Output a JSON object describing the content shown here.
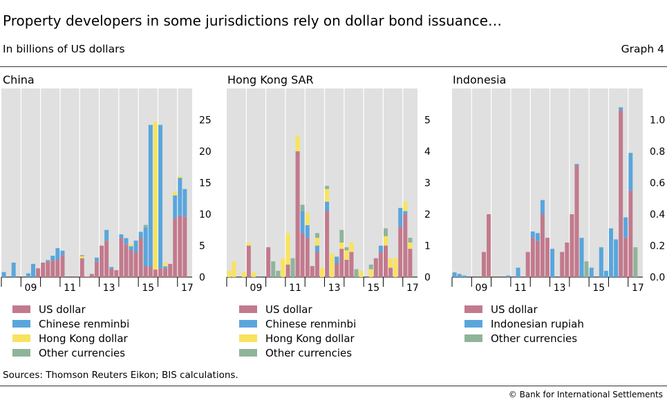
{
  "header": {
    "title": "Property developers in some jurisdictions rely on dollar bond issuance…",
    "subtitle": "In billions of US dollars",
    "graph_label": "Graph 4"
  },
  "footer": {
    "sources": "Sources: Thomson Reuters Eikon; BIS calculations.",
    "copyright": "© Bank for International Settlements"
  },
  "colors": {
    "US dollar": "#c27a8d",
    "Chinese renminbi": "#5aa6dc",
    "Hong Kong dollar": "#f8e35e",
    "Indonesian rupiah": "#5aa6dc",
    "Other currencies": "#8fb49a",
    "plot_background": "#e0e0e0"
  },
  "chart_data": [
    {
      "type": "bar",
      "stacked": true,
      "title": "China",
      "x_tick_labels": [
        "09",
        "11",
        "13",
        "15",
        "17"
      ],
      "x_tick_positions": [
        2009,
        2011,
        2013,
        2015,
        2017
      ],
      "ylim": [
        0,
        30
      ],
      "y_ticks": [
        0,
        5,
        10,
        15,
        20,
        25
      ],
      "y_axis_side": "right",
      "grid": true,
      "legend_placement": "bottom",
      "series": [
        {
          "name": "US dollar",
          "x": [
            2008,
            2008.5,
            2009.25,
            2009.5,
            2009.75,
            2010,
            2010.25,
            2010.5,
            2010.75,
            2011,
            2012,
            2012.25,
            2012.5,
            2012.75,
            2013,
            2013.25,
            2013.5,
            2013.75,
            2014,
            2014.25,
            2014.5,
            2014.75,
            2015,
            2015.25,
            2015.5,
            2015.75,
            2016,
            2016.25,
            2016.5,
            2016.75,
            2017,
            2017.25
          ],
          "values": [
            0,
            0,
            0,
            0,
            1.4,
            2.3,
            2.5,
            2.6,
            2.8,
            3.5,
            3.0,
            0.1,
            0.5,
            2.5,
            5.0,
            5.8,
            1.3,
            1.1,
            6.2,
            5.2,
            4.3,
            3.9,
            6.2,
            1.7,
            1.7,
            1.2,
            1.4,
            1.4,
            2.1,
            9.3,
            9.8,
            9.6
          ],
          "note": "estimated from bar heights"
        },
        {
          "name": "Chinese renminbi",
          "x": [
            2008,
            2008.5,
            2009.25,
            2009.5,
            2009.75,
            2010,
            2010.25,
            2010.5,
            2010.75,
            2011,
            2012,
            2012.25,
            2012.5,
            2012.75,
            2013,
            2013.25,
            2013.5,
            2013.75,
            2014,
            2014.25,
            2014.5,
            2014.75,
            2015,
            2015.25,
            2015.5,
            2015.75,
            2016,
            2016.25,
            2016.5,
            2016.75,
            2017,
            2017.25
          ],
          "values": [
            0.8,
            2.3,
            0.6,
            2.1,
            0,
            0,
            0.2,
            0.8,
            1.8,
            0.7,
            0,
            0,
            0,
            0.6,
            0,
            1.7,
            0.3,
            0,
            0.6,
            1.0,
            0.6,
            1.9,
            1.0,
            6.2,
            22.5,
            0,
            22.8,
            0.3,
            0,
            3.7,
            6.0,
            4.4
          ]
        },
        {
          "name": "Hong Kong dollar",
          "x": [
            2012,
            2014.5,
            2015.75,
            2016.25,
            2016.75,
            2017
          ],
          "values": [
            0.3,
            0.3,
            23.5,
            0.6,
            0.6,
            0.3
          ]
        },
        {
          "name": "Other currencies",
          "x": [
            2012,
            2015.25
          ],
          "values": [
            0.2,
            0.4
          ]
        }
      ]
    },
    {
      "type": "bar",
      "stacked": true,
      "title": "Hong Kong SAR",
      "x_tick_labels": [
        "09",
        "11",
        "13",
        "15",
        "17"
      ],
      "x_tick_positions": [
        2009,
        2011,
        2013,
        2015,
        2017
      ],
      "ylim": [
        0,
        6
      ],
      "y_ticks": [
        0,
        1,
        2,
        3,
        4,
        5
      ],
      "y_axis_side": "right",
      "grid": true,
      "legend_placement": "bottom",
      "series": [
        {
          "name": "US dollar",
          "x": [
            2009,
            2010,
            2011,
            2011.5,
            2011.75,
            2012,
            2012.25,
            2012.5,
            2013,
            2013.5,
            2013.75,
            2014,
            2014.25,
            2015.5,
            2015.75,
            2016,
            2016.25,
            2016.75,
            2017,
            2017.25
          ],
          "values": [
            1.0,
            0.95,
            0.4,
            4.0,
            1.4,
            1.25,
            0.35,
            0.8,
            2.1,
            0.45,
            0.9,
            0.55,
            0.8,
            0.6,
            0.8,
            1.0,
            0.3,
            1.6,
            2.0,
            0.9
          ]
        },
        {
          "name": "Chinese renminbi",
          "x": [
            2011.75,
            2012,
            2012.5,
            2013,
            2013.5,
            2015.75,
            2016.75,
            2017
          ],
          "values": [
            0.7,
            0.4,
            0.2,
            0.3,
            0.2,
            0.2,
            0.6,
            0.1
          ]
        },
        {
          "name": "Hong Kong dollar",
          "x": [
            2008,
            2008.25,
            2008.75,
            2009,
            2009.25,
            2010.75,
            2011,
            2011.5,
            2012,
            2012.5,
            2012.75,
            2013,
            2013.25,
            2013.75,
            2014,
            2014.25,
            2014.75,
            2015.25,
            2016,
            2016.25,
            2016.5,
            2017,
            2017.25
          ],
          "values": [
            0.2,
            0.5,
            0.15,
            0.1,
            0.15,
            0.6,
            1.0,
            0.5,
            0.4,
            0.25,
            0.3,
            0.4,
            0.75,
            0.2,
            0.3,
            0.3,
            0.2,
            0.25,
            0.3,
            0.3,
            0.6,
            0.3,
            0.2
          ]
        },
        {
          "name": "Other currencies",
          "x": [
            2010.25,
            2010.5,
            2011.25,
            2011.75,
            2012.5,
            2013,
            2013.75,
            2014,
            2014.5,
            2015.25,
            2016,
            2017.25
          ],
          "values": [
            0.5,
            0.2,
            0.6,
            0.2,
            0.15,
            0.1,
            0.4,
            0.1,
            0.25,
            0.15,
            0.25,
            0.15
          ]
        }
      ]
    },
    {
      "type": "bar",
      "stacked": true,
      "title": "Indonesia",
      "x_tick_labels": [
        "09",
        "11",
        "13",
        "15",
        "17"
      ],
      "x_tick_positions": [
        2009,
        2011,
        2013,
        2015,
        2017
      ],
      "ylim": [
        0,
        1.2
      ],
      "y_ticks": [
        0.0,
        0.2,
        0.4,
        0.6,
        0.8,
        1.0
      ],
      "y_tick_labels": [
        "0.0",
        "0.2",
        "0.4",
        "0.6",
        "0.8",
        "1.0"
      ],
      "y_axis_side": "right",
      "grid": true,
      "legend_placement": "bottom",
      "series": [
        {
          "name": "US dollar",
          "x": [
            2009.5,
            2009.75,
            2011.75,
            2012,
            2012.25,
            2012.5,
            2012.75,
            2013.5,
            2013.75,
            2014,
            2014.25,
            2016.5,
            2016.75,
            2017
          ],
          "values": [
            0.16,
            0.4,
            0.16,
            0.25,
            0.23,
            0.4,
            0.25,
            0.16,
            0.22,
            0.4,
            0.71,
            1.06,
            0.25,
            0.55
          ]
        },
        {
          "name": "Indonesian rupiah",
          "x": [
            2008,
            2008.25,
            2008.5,
            2010,
            2010.75,
            2011.25,
            2012,
            2012.25,
            2012.5,
            2013,
            2014.25,
            2014.5,
            2015,
            2015.5,
            2015.75,
            2016,
            2016.25,
            2016.5,
            2016.75,
            2017
          ],
          "values": [
            0.03,
            0.02,
            0.01,
            0.0,
            0.01,
            0.06,
            0.04,
            0.05,
            0.09,
            0.18,
            0.01,
            0.25,
            0.06,
            0.19,
            0.04,
            0.31,
            0.24,
            0.02,
            0.13,
            0.24
          ]
        },
        {
          "name": "Other currencies",
          "x": [
            2014.75,
            2017.25
          ],
          "values": [
            0.1,
            0.19
          ]
        }
      ]
    }
  ]
}
